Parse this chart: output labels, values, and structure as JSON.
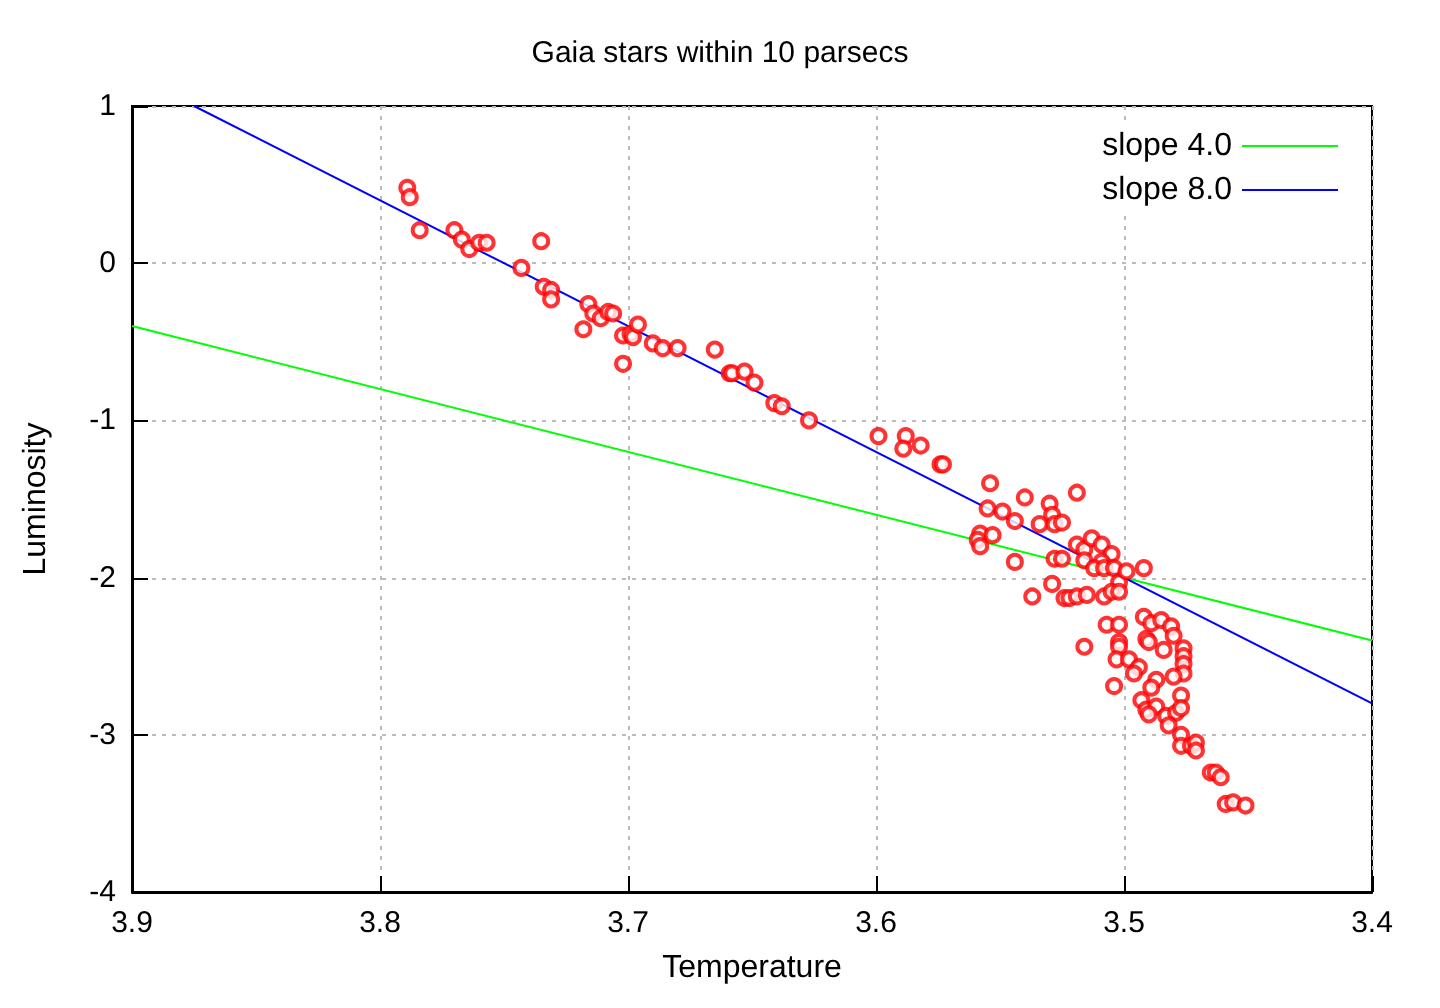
{
  "chart_data": {
    "type": "scatter",
    "title": "Gaia stars within 10 parsecs",
    "xlabel": "Temperature",
    "ylabel": "Luminosity",
    "xlim": [
      3.9,
      3.4
    ],
    "xticks": [
      3.9,
      3.8,
      3.7,
      3.6,
      3.5,
      3.4
    ],
    "ylim": [
      -4,
      1
    ],
    "yticks": [
      -4,
      -3,
      -2,
      -1,
      0,
      1
    ],
    "grid": true,
    "legend": "top right",
    "series": [
      {
        "type": "scatter",
        "marker": "circle",
        "color": "#ff0000",
        "x": [
          3.789,
          3.788,
          3.784,
          3.77,
          3.767,
          3.764,
          3.76,
          3.757,
          3.735,
          3.743,
          3.734,
          3.731,
          3.731,
          3.716,
          3.714,
          3.711,
          3.708,
          3.706,
          3.718,
          3.702,
          3.699,
          3.698,
          3.696,
          3.702,
          3.69,
          3.686,
          3.68,
          3.665,
          3.659,
          3.658,
          3.653,
          3.649,
          3.641,
          3.638,
          3.627,
          3.599,
          3.588,
          3.589,
          3.582,
          3.574,
          3.573,
          3.554,
          3.555,
          3.549,
          3.544,
          3.54,
          3.534,
          3.53,
          3.529,
          3.528,
          3.525,
          3.519,
          3.558,
          3.553,
          3.559,
          3.558,
          3.544,
          3.528,
          3.525,
          3.529,
          3.537,
          3.519,
          3.516,
          3.513,
          3.509,
          3.505,
          3.509,
          3.516,
          3.512,
          3.508,
          3.504,
          3.502,
          3.499,
          3.492,
          3.524,
          3.522,
          3.519,
          3.515,
          3.508,
          3.505,
          3.502,
          3.507,
          3.502,
          3.502,
          3.502,
          3.516,
          3.503,
          3.498,
          3.494,
          3.496,
          3.504,
          3.492,
          3.489,
          3.485,
          3.481,
          3.48,
          3.491,
          3.49,
          3.484,
          3.476,
          3.476,
          3.476,
          3.476,
          3.48,
          3.487,
          3.489,
          3.477,
          3.493,
          3.491,
          3.487,
          3.49,
          3.483,
          3.479,
          3.477,
          3.482,
          3.477,
          3.477,
          3.473,
          3.471,
          3.471,
          3.465,
          3.463,
          3.461,
          3.459,
          3.456,
          3.451
        ],
        "values": [
          0.48,
          0.42,
          0.21,
          0.21,
          0.15,
          0.09,
          0.13,
          0.13,
          0.14,
          -0.03,
          -0.15,
          -0.17,
          -0.23,
          -0.26,
          -0.32,
          -0.35,
          -0.31,
          -0.32,
          -0.42,
          -0.46,
          -0.45,
          -0.47,
          -0.39,
          -0.64,
          -0.51,
          -0.54,
          -0.54,
          -0.55,
          -0.7,
          -0.7,
          -0.69,
          -0.76,
          -0.89,
          -0.91,
          -1.0,
          -1.1,
          -1.1,
          -1.18,
          -1.16,
          -1.28,
          -1.28,
          -1.4,
          -1.56,
          -1.58,
          -1.64,
          -1.49,
          -1.66,
          -1.53,
          -1.6,
          -1.66,
          -1.65,
          -1.46,
          -1.72,
          -1.73,
          -1.76,
          -1.8,
          -1.9,
          -1.88,
          -1.88,
          -2.04,
          -2.12,
          -1.79,
          -1.82,
          -1.75,
          -1.79,
          -1.85,
          -1.9,
          -1.89,
          -1.94,
          -1.94,
          -1.94,
          -2.03,
          -1.96,
          -1.94,
          -2.13,
          -2.13,
          -2.12,
          -2.11,
          -2.12,
          -2.09,
          -2.09,
          -2.3,
          -2.3,
          -2.41,
          -2.44,
          -2.44,
          -2.52,
          -2.52,
          -2.57,
          -2.61,
          -2.69,
          -2.25,
          -2.29,
          -2.27,
          -2.31,
          -2.37,
          -2.39,
          -2.41,
          -2.46,
          -2.45,
          -2.5,
          -2.55,
          -2.61,
          -2.63,
          -2.65,
          -2.7,
          -2.75,
          -2.78,
          -2.84,
          -2.82,
          -2.87,
          -2.88,
          -2.86,
          -2.83,
          -2.94,
          -3.0,
          -3.07,
          -3.07,
          -3.05,
          -3.1,
          -3.24,
          -3.24,
          -3.27,
          -3.44,
          -3.43,
          -3.45
        ]
      },
      {
        "type": "line",
        "marker": "none",
        "name": "slope 4.0",
        "color": "#00ff00",
        "x": [
          3.9,
          3.4
        ],
        "values": [
          -0.4,
          -2.4
        ]
      },
      {
        "type": "line",
        "marker": "none",
        "name": "slope 8.0",
        "color": "#0000ff",
        "x": [
          3.875,
          3.4
        ],
        "values": [
          1,
          -2.8
        ]
      }
    ]
  }
}
